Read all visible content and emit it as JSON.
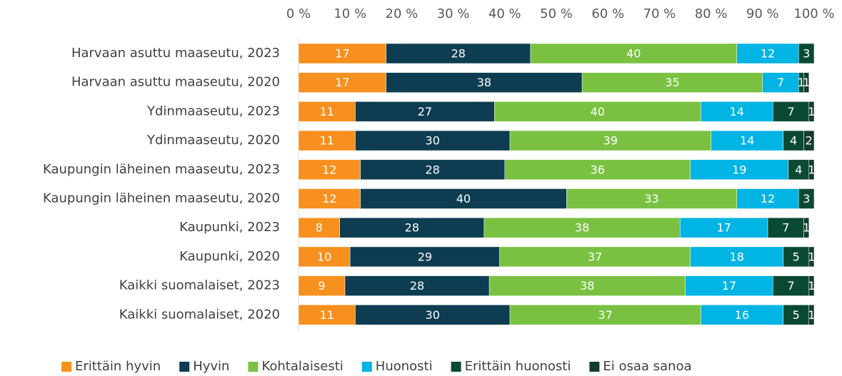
{
  "chart_data": {
    "type": "stacked-bar-horizontal",
    "categories": [
      "Harvaan asuttu maaseutu, 2023",
      "Harvaan asuttu maaseutu, 2020",
      "Ydinmaaseutu, 2023",
      "Ydinmaaseutu, 2020",
      "Kaupungin läheinen maaseutu, 2023",
      "Kaupungin läheinen maaseutu, 2020",
      "Kaupunki, 2023",
      "Kaupunki, 2020",
      "Kaikki suomalaiset, 2023",
      "Kaikki suomalaiset, 2020"
    ],
    "series": [
      {
        "name": "Erittäin hyvin",
        "color": "#f7901e",
        "values": [
          17,
          17,
          11,
          11,
          12,
          12,
          8,
          10,
          9,
          11
        ]
      },
      {
        "name": "Hyvin",
        "color": "#0e3d52",
        "values": [
          28,
          38,
          27,
          30,
          28,
          40,
          28,
          29,
          28,
          30
        ]
      },
      {
        "name": "Kohtalaisesti",
        "color": "#7ac142",
        "values": [
          40,
          35,
          40,
          39,
          36,
          33,
          38,
          37,
          38,
          37
        ]
      },
      {
        "name": "Huonosti",
        "color": "#00b4e4",
        "values": [
          12,
          7,
          14,
          14,
          19,
          12,
          17,
          18,
          17,
          16
        ]
      },
      {
        "name": "Erittäin huonosti",
        "color": "#0b4a32",
        "values": [
          3,
          1,
          7,
          4,
          4,
          3,
          7,
          5,
          7,
          5
        ]
      },
      {
        "name": "Ei osaa sanoa",
        "color": "#133d2c",
        "values": [
          null,
          1,
          1,
          2,
          1,
          null,
          1,
          1,
          1,
          1
        ]
      }
    ],
    "xlim": [
      0,
      100
    ],
    "xticks": [
      {
        "value": 0,
        "label": "0 %"
      },
      {
        "value": 10,
        "label": "10 %"
      },
      {
        "value": 20,
        "label": "20 %"
      },
      {
        "value": 30,
        "label": "30 %"
      },
      {
        "value": 40,
        "label": "40 %"
      },
      {
        "value": 50,
        "label": "50 %"
      },
      {
        "value": 60,
        "label": "60 %"
      },
      {
        "value": 70,
        "label": "70 %"
      },
      {
        "value": 80,
        "label": "80 %"
      },
      {
        "value": 90,
        "label": "90 %"
      },
      {
        "value": 100,
        "label": "100 %"
      }
    ],
    "legend": "bottom"
  }
}
